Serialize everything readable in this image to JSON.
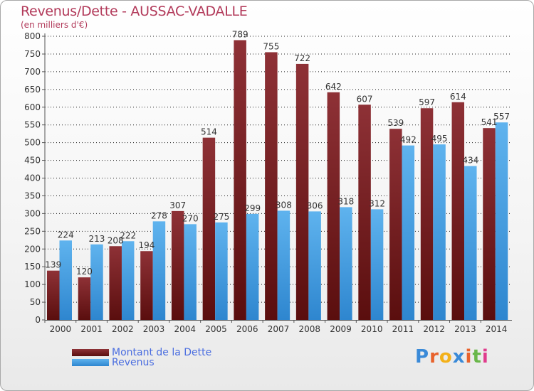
{
  "header": {
    "title": "Revenus/Dette - AUSSAC-VADALLE",
    "subtitle": "(en milliers d'€)"
  },
  "logo": {
    "text": "Proxiti",
    "letters": [
      "P",
      "r",
      "o",
      "x",
      "i",
      "t",
      "i"
    ],
    "letter_colors": [
      "#3a8ad8",
      "#e8622c",
      "#f3b11a",
      "#3a8ad8",
      "#e8622c",
      "#6ab74a",
      "#e03c8c"
    ]
  },
  "colors": {
    "dette_dark": "#5a0e0e",
    "dette_light": "#8e3136",
    "revenus_dark": "#2e86cf",
    "revenus_light": "#5fb3ee",
    "grid": "#222222",
    "value_label": "#333333"
  },
  "chart_data": {
    "type": "bar",
    "title": "Revenus/Dette - AUSSAC-VADALLE",
    "ylabel": "(en milliers d'€)",
    "xlabel": "",
    "categories": [
      "2000",
      "2001",
      "2002",
      "2003",
      "2004",
      "2005",
      "2006",
      "2007",
      "2008",
      "2009",
      "2010",
      "2011",
      "2012",
      "2013",
      "2014"
    ],
    "series": [
      {
        "name": "Montant de la Dette",
        "values": [
          139,
          120,
          208,
          194,
          307,
          514,
          789,
          755,
          722,
          642,
          607,
          539,
          597,
          614,
          541
        ]
      },
      {
        "name": "Revenus",
        "values": [
          224,
          213,
          222,
          278,
          270,
          275,
          299,
          308,
          306,
          318,
          312,
          492,
          495,
          434,
          557
        ]
      }
    ],
    "ylim": [
      0,
      800
    ],
    "yticks": [
      0,
      50,
      100,
      150,
      200,
      250,
      300,
      350,
      400,
      450,
      500,
      550,
      600,
      650,
      700,
      750,
      800
    ],
    "grid": true,
    "legend": "bottom-left"
  }
}
